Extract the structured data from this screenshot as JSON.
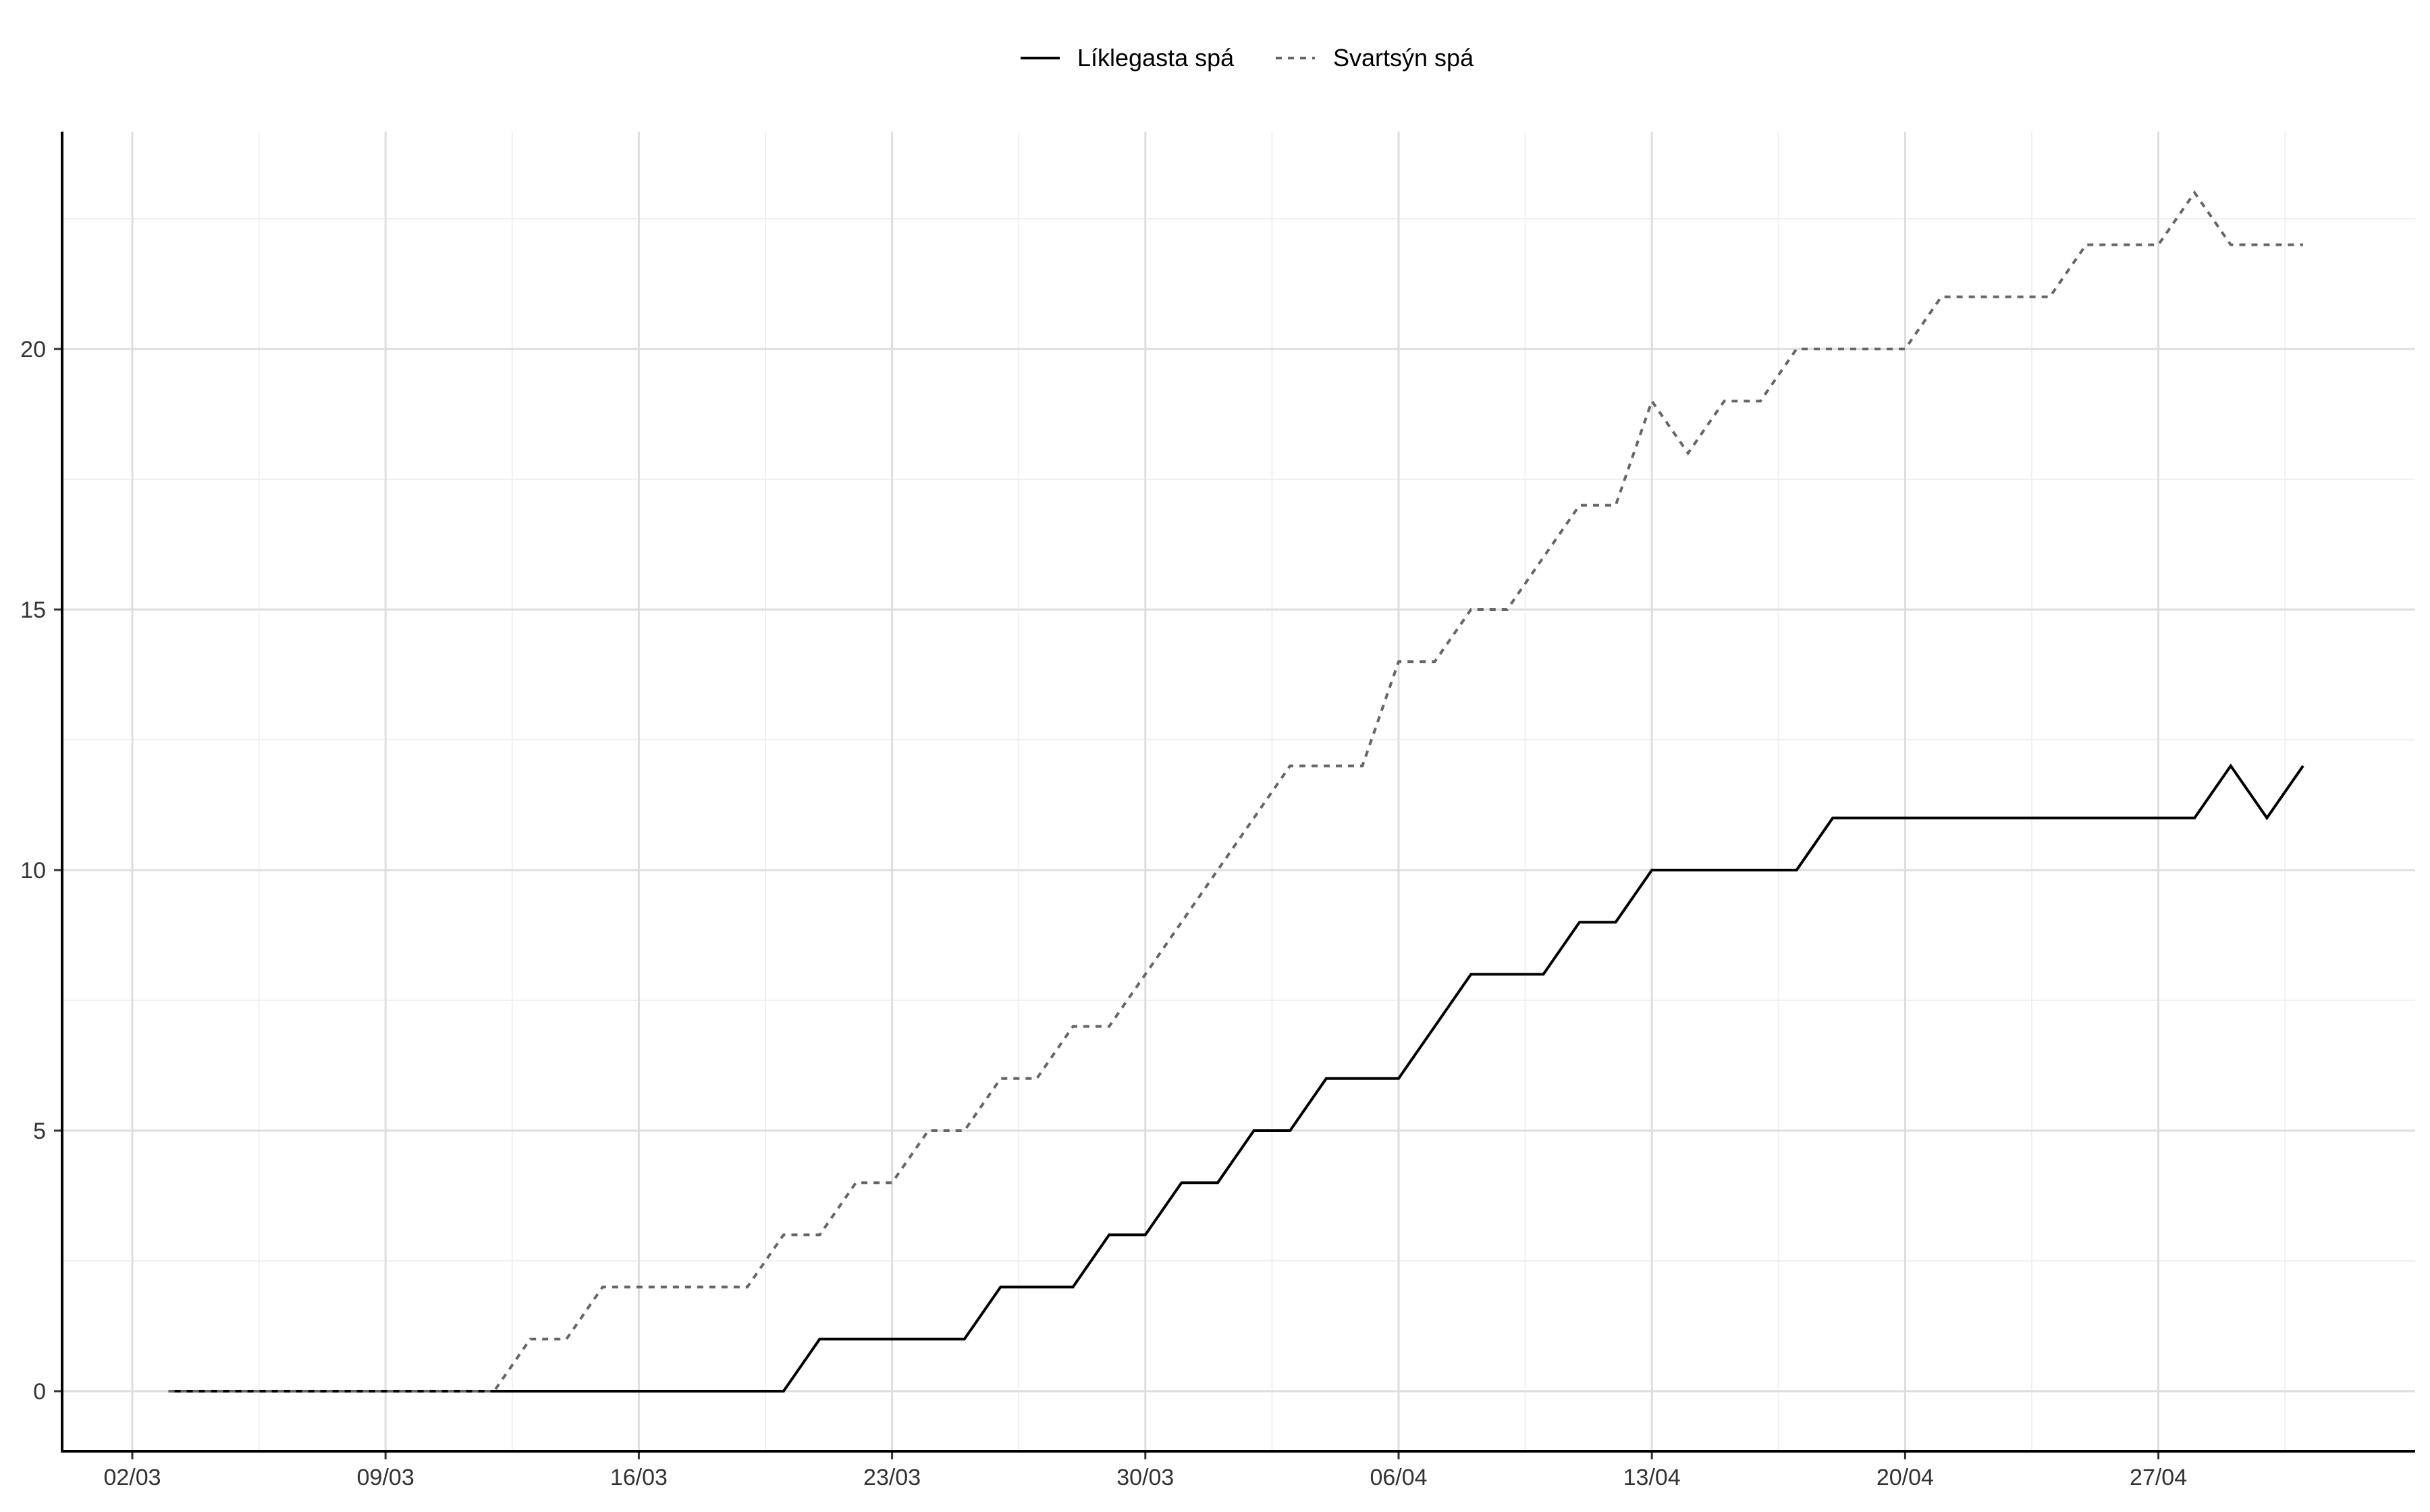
{
  "chart_data": {
    "type": "line",
    "title": "",
    "xlabel": "",
    "ylabel": "",
    "legend_position": "top",
    "grid": true,
    "x_tick_labels": [
      "02/03",
      "09/03",
      "16/03",
      "23/03",
      "30/03",
      "06/04",
      "13/04",
      "20/04",
      "27/04"
    ],
    "y_tick_labels": [
      "0",
      "5",
      "10",
      "15",
      "20"
    ],
    "ylim": [
      -1,
      24
    ],
    "x_start": "03/03",
    "x_end": "01/05",
    "x": [
      "03/03",
      "04/03",
      "05/03",
      "06/03",
      "07/03",
      "08/03",
      "09/03",
      "10/03",
      "11/03",
      "12/03",
      "13/03",
      "14/03",
      "15/03",
      "16/03",
      "17/03",
      "18/03",
      "19/03",
      "20/03",
      "21/03",
      "22/03",
      "23/03",
      "24/03",
      "25/03",
      "26/03",
      "27/03",
      "28/03",
      "29/03",
      "30/03",
      "31/03",
      "01/04",
      "02/04",
      "03/04",
      "04/04",
      "05/04",
      "06/04",
      "07/04",
      "08/04",
      "09/04",
      "10/04",
      "11/04",
      "12/04",
      "13/04",
      "14/04",
      "15/04",
      "16/04",
      "17/04",
      "18/04",
      "19/04",
      "20/04",
      "21/04",
      "22/04",
      "23/04",
      "24/04",
      "25/04",
      "26/04",
      "27/04",
      "28/04",
      "29/04",
      "30/04",
      "01/05"
    ],
    "series": [
      {
        "name": "Líklegasta spá",
        "style": "solid",
        "color": "#000000",
        "values": [
          0,
          0,
          0,
          0,
          0,
          0,
          0,
          0,
          0,
          0,
          0,
          0,
          0,
          0,
          0,
          0,
          0,
          0,
          1,
          1,
          1,
          1,
          1,
          2,
          2,
          2,
          3,
          3,
          4,
          4,
          5,
          5,
          6,
          6,
          6,
          7,
          8,
          8,
          8,
          9,
          9,
          10,
          10,
          10,
          10,
          10,
          11,
          11,
          11,
          11,
          11,
          11,
          11,
          11,
          11,
          11,
          11,
          12,
          11,
          12
        ]
      },
      {
        "name": "Svartsýn spá",
        "style": "dashed",
        "color": "#666666",
        "values": [
          0,
          0,
          0,
          0,
          0,
          0,
          0,
          0,
          0,
          0,
          1,
          1,
          2,
          2,
          2,
          2,
          2,
          3,
          3,
          4,
          4,
          5,
          5,
          6,
          6,
          7,
          7,
          8,
          9,
          10,
          11,
          12,
          12,
          12,
          14,
          14,
          15,
          15,
          16,
          17,
          17,
          19,
          18,
          19,
          19,
          20,
          20,
          20,
          20,
          21,
          21,
          21,
          21,
          22,
          22,
          22,
          23,
          22,
          22,
          22
        ]
      }
    ]
  }
}
